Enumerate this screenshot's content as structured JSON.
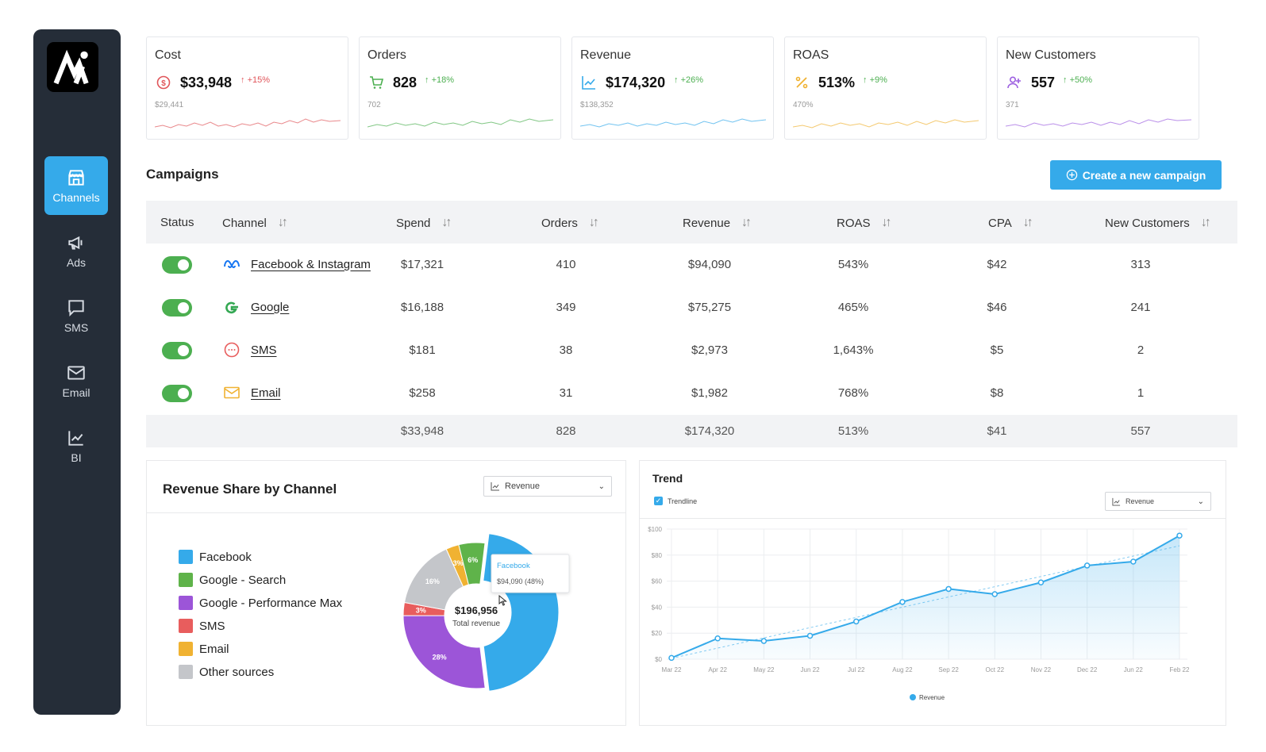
{
  "sidebar": {
    "items": [
      {
        "label": "Channels",
        "icon": "store-icon"
      },
      {
        "label": "Ads",
        "icon": "megaphone-icon"
      },
      {
        "label": "SMS",
        "icon": "chat-icon"
      },
      {
        "label": "Email",
        "icon": "mail-icon"
      },
      {
        "label": "BI",
        "icon": "chart-line-icon"
      }
    ]
  },
  "kpis": [
    {
      "title": "Cost",
      "value": "$33,948",
      "delta": "+15%",
      "prev": "$29,441",
      "color": "#e0555a"
    },
    {
      "title": "Orders",
      "value": "828",
      "delta": "+18%",
      "prev": "702",
      "color": "#4caf50"
    },
    {
      "title": "Revenue",
      "value": "$174,320",
      "delta": "+26%",
      "prev": "$138,352",
      "color": "#35aaea"
    },
    {
      "title": "ROAS",
      "value": "513%",
      "delta": "+9%",
      "prev": "470%",
      "color": "#f0b232"
    },
    {
      "title": "New Customers",
      "value": "557",
      "delta": "+50%",
      "prev": "371",
      "color": "#9c5fe0"
    }
  ],
  "campaigns": {
    "title": "Campaigns",
    "create_label": "Create a new campaign",
    "columns": [
      "Status",
      "Channel",
      "Spend",
      "Orders",
      "Revenue",
      "ROAS",
      "CPA",
      "New Customers"
    ],
    "rows": [
      {
        "channel": "Facebook & Instagram",
        "spend": "$17,321",
        "orders": "410",
        "revenue": "$94,090",
        "roas": "543%",
        "cpa": "$42",
        "new_customers": "313"
      },
      {
        "channel": "Google",
        "spend": "$16,188",
        "orders": "349",
        "revenue": "$75,275",
        "roas": "465%",
        "cpa": "$46",
        "new_customers": "241"
      },
      {
        "channel": "SMS",
        "spend": "$181",
        "orders": "38",
        "revenue": "$2,973",
        "roas": "1,643%",
        "cpa": "$5",
        "new_customers": "2"
      },
      {
        "channel": "Email",
        "spend": "$258",
        "orders": "31",
        "revenue": "$1,982",
        "roas": "768%",
        "cpa": "$8",
        "new_customers": "1"
      }
    ],
    "totals": {
      "spend": "$33,948",
      "orders": "828",
      "revenue": "$174,320",
      "roas": "513%",
      "cpa": "$41",
      "new_customers": "557"
    }
  },
  "revenue_share": {
    "title": "Revenue Share by Channel",
    "select_value": "Revenue",
    "legend": [
      {
        "label": "Facebook",
        "color": "#35aaea"
      },
      {
        "label": "Google - Search",
        "color": "#5fb34a"
      },
      {
        "label": "Google - Performance Max",
        "color": "#9c55d8"
      },
      {
        "label": "SMS",
        "color": "#e85d5d"
      },
      {
        "label": "Email",
        "color": "#f0b232"
      },
      {
        "label": "Other sources",
        "color": "#c4c6ca"
      }
    ],
    "center_value": "$196,956",
    "center_label": "Total revenue",
    "tooltip_title": "Facebook",
    "tooltip_value": "$94,090 (48%)"
  },
  "trend": {
    "title": "Trend",
    "trendline_label": "Trendline",
    "select_value": "Revenue",
    "legend_label": "Revenue"
  },
  "chart_data": [
    {
      "type": "pie",
      "labels": [
        "Facebook",
        "Google - Search",
        "Google - Performance Max",
        "SMS",
        "Email",
        "Other sources"
      ],
      "values": [
        48,
        6,
        28,
        3,
        3,
        16
      ],
      "data_labels": [
        "",
        "6%",
        "28%",
        "3%",
        "3%",
        "16%"
      ],
      "colors": [
        "#35aaea",
        "#5fb34a",
        "#9c55d8",
        "#e85d5d",
        "#f0b232",
        "#c4c6ca"
      ]
    },
    {
      "type": "area",
      "categories": [
        "Mar 22",
        "Apr 22",
        "May 22",
        "Jun 22",
        "Jul 22",
        "Aug 22",
        "Sep 22",
        "Oct 22",
        "Nov 22",
        "Dec 22",
        "Jun 22",
        "Feb 22"
      ],
      "series": [
        {
          "name": "Revenue",
          "values": [
            1,
            16,
            14,
            18,
            29,
            44,
            54,
            50,
            59,
            72,
            75,
            95
          ]
        }
      ],
      "ylim": [
        0,
        100
      ],
      "yticks": [
        "$0",
        "$20",
        "$40",
        "$60",
        "$80",
        "$100"
      ],
      "trendline": true,
      "grid": true,
      "legend": "bottom"
    }
  ]
}
